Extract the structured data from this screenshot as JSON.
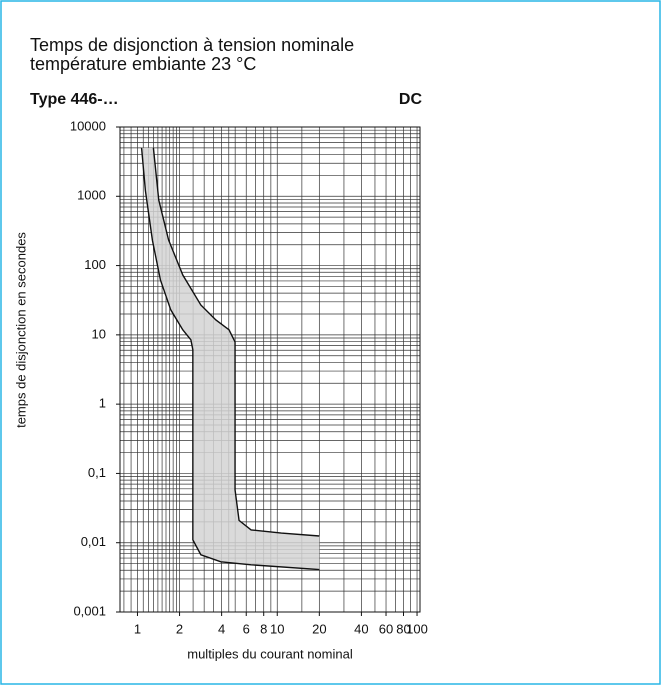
{
  "header": {
    "title_line1": "Temps de disjonction à tension nominale",
    "title_line2": "température embiante 23 °C",
    "type_label": "Type 446-…",
    "current_label": "DC"
  },
  "chart_data": {
    "type": "band",
    "xlabel": "multiples  du courant nominal",
    "ylabel": "temps de disjonction en secondes",
    "log_x": true,
    "log_y": true,
    "grid": true,
    "band_color": "#d3d3d3",
    "line_color": "#111111",
    "xlim": [
      0.75,
      105
    ],
    "ylim": [
      0.001,
      10000
    ],
    "xticks": [
      1,
      2,
      4,
      6,
      8,
      10,
      20,
      40,
      60,
      80,
      100
    ],
    "yticks": [
      {
        "value": 0.001,
        "label": "0,001"
      },
      {
        "value": 0.01,
        "label": "0,01"
      },
      {
        "value": 0.1,
        "label": "0,1"
      },
      1,
      10,
      100,
      1000,
      10000
    ],
    "xgrid": [
      0.8,
      0.9,
      1,
      1.1,
      1.2,
      1.3,
      1.4,
      1.5,
      1.6,
      1.7,
      1.8,
      1.9,
      2,
      2.5,
      3,
      3.5,
      4,
      4.5,
      5,
      6,
      7,
      8,
      9,
      10,
      15,
      20,
      30,
      40,
      50,
      60,
      70,
      80,
      90,
      100
    ],
    "ygrid": [
      0.001,
      0.002,
      0.003,
      0.004,
      0.005,
      0.006,
      0.007,
      0.008,
      0.009,
      0.01,
      0.02,
      0.03,
      0.04,
      0.05,
      0.06,
      0.07,
      0.08,
      0.09,
      0.1,
      0.2,
      0.3,
      0.4,
      0.5,
      0.6,
      0.7,
      0.8,
      0.9,
      1,
      2,
      3,
      4,
      5,
      6,
      7,
      8,
      9,
      10,
      20,
      30,
      40,
      50,
      60,
      70,
      80,
      90,
      100,
      200,
      300,
      400,
      500,
      600,
      700,
      800,
      900,
      1000,
      2000,
      3000,
      4000,
      5000,
      6000,
      7000,
      8000,
      9000,
      10000
    ],
    "series": [
      {
        "x": [
          1.07,
          1.14,
          1.28,
          1.46,
          1.73,
          2.11,
          2.41,
          2.49,
          2.49,
          2.84,
          3.95,
          6.5,
          20
        ],
        "values": [
          5000,
          1200,
          230,
          62,
          23,
          11.8,
          8.5,
          6.1,
          0.011,
          0.0067,
          0.0053,
          0.0048,
          0.0041
        ]
      },
      {
        "x": [
          1.3,
          1.42,
          1.67,
          2.11,
          2.84,
          3.64,
          4.52,
          4.99,
          4.99,
          5.33,
          6.5,
          10.7,
          20
        ],
        "values": [
          5000,
          885,
          234,
          73,
          27,
          16.4,
          11.8,
          7.9,
          0.058,
          0.021,
          0.0153,
          0.0138,
          0.0125
        ]
      }
    ]
  }
}
